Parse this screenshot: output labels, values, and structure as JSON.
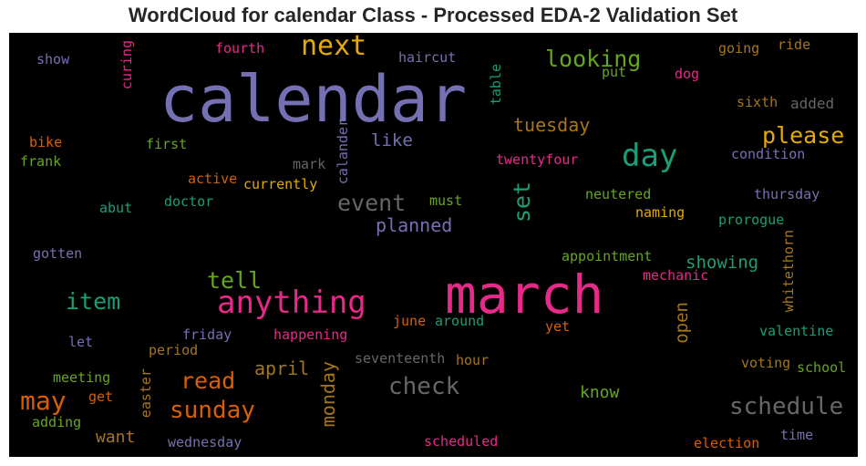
{
  "title": "WordCloud for calendar Class - Processed EDA-2 Validation Set",
  "colors": {
    "background": "#000000",
    "purple": "#7570b3",
    "magenta": "#e7298a",
    "orange": "#d95f02",
    "teal": "#1b9e77",
    "green": "#66a61e",
    "yellow": "#e6ab02",
    "brown": "#a6761d",
    "gray": "#666666"
  },
  "words": [
    "calendar",
    "march",
    "next",
    "day",
    "anything",
    "looking",
    "please",
    "event",
    "set",
    "tell",
    "item",
    "may",
    "check",
    "schedule",
    "sunday",
    "read",
    "planned",
    "like",
    "tuesday",
    "monday",
    "april",
    "showing",
    "open",
    "know",
    "want",
    "haircut",
    "fourth",
    "curing",
    "show",
    "table",
    "put",
    "dog",
    "going",
    "ride",
    "sixth",
    "added",
    "bike",
    "frank",
    "first",
    "mark",
    "calander",
    "twentyfour",
    "condition",
    "active",
    "currently",
    "doctor",
    "abut",
    "must",
    "neutered",
    "thursday",
    "naming",
    "prorogue",
    "gotten",
    "appointment",
    "whitethorn",
    "mechanic",
    "june",
    "around",
    "yet",
    "valentine",
    "friday",
    "happening",
    "let",
    "period",
    "seventeenth",
    "hour",
    "meeting",
    "easter",
    "voting",
    "school",
    "get",
    "adding",
    "wednesday",
    "scheduled",
    "election",
    "time"
  ]
}
